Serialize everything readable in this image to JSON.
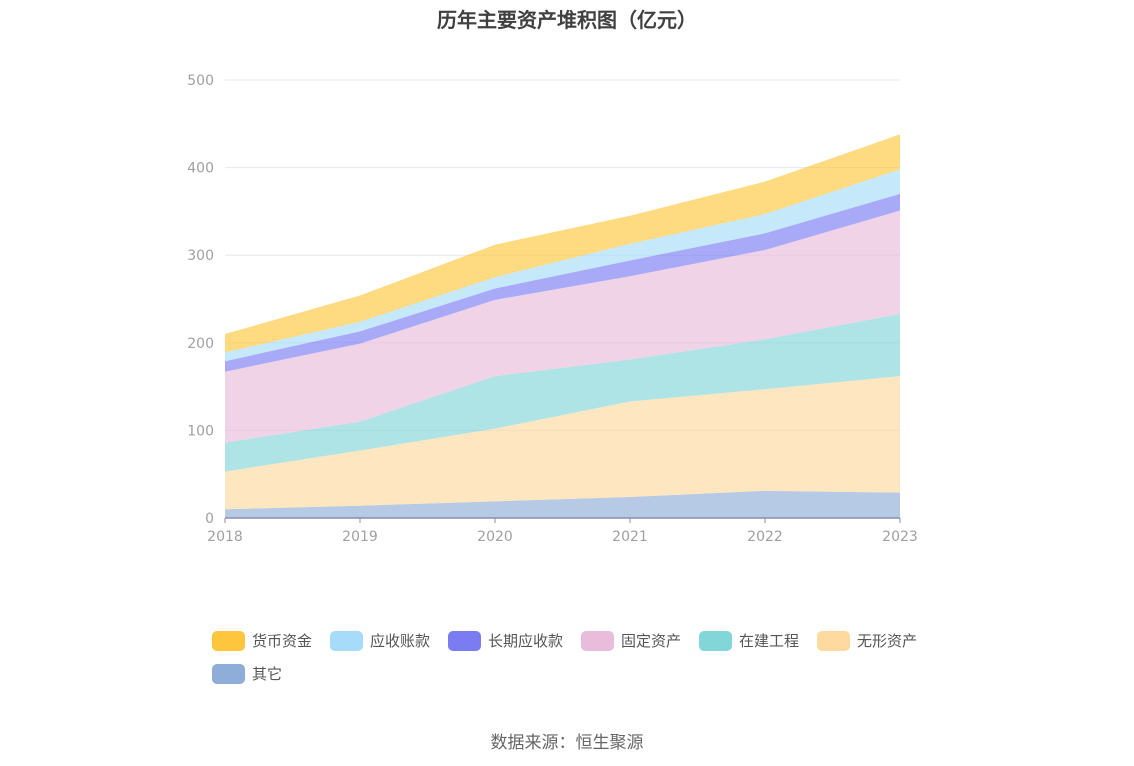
{
  "chart_data": {
    "type": "area",
    "stacked": true,
    "title": "历年主要资产堆积图（亿元）",
    "categories": [
      "2018",
      "2019",
      "2020",
      "2021",
      "2022",
      "2023"
    ],
    "ylim": [
      0,
      500
    ],
    "yticks": [
      0,
      100,
      200,
      300,
      400,
      500
    ],
    "grid": true,
    "legend_position": "bottom",
    "series": [
      {
        "name": "其它",
        "color": "#8fadd9",
        "values": [
          10,
          14,
          19,
          24,
          31,
          29
        ]
      },
      {
        "name": "无形资产",
        "color": "#fed9a0",
        "values": [
          43,
          63,
          83,
          109,
          116,
          133
        ]
      },
      {
        "name": "在建工程",
        "color": "#82d6d8",
        "values": [
          33,
          33,
          60,
          48,
          57,
          71
        ]
      },
      {
        "name": "固定资产",
        "color": "#eabcdb",
        "values": [
          81,
          89,
          87,
          95,
          102,
          118
        ]
      },
      {
        "name": "长期应收款",
        "color": "#7b7cf2",
        "values": [
          12,
          14,
          13,
          18,
          19,
          19
        ]
      },
      {
        "name": "应收账款",
        "color": "#a6dcf9",
        "values": [
          10,
          11,
          13,
          19,
          22,
          28
        ]
      },
      {
        "name": "货币资金",
        "color": "#fdc63c",
        "values": [
          21,
          30,
          37,
          32,
          37,
          40
        ]
      }
    ],
    "legend_order": [
      "货币资金",
      "应收账款",
      "长期应收款",
      "固定资产",
      "在建工程",
      "无形资产",
      "其它"
    ]
  },
  "source_text": "数据来源：恒生聚源"
}
